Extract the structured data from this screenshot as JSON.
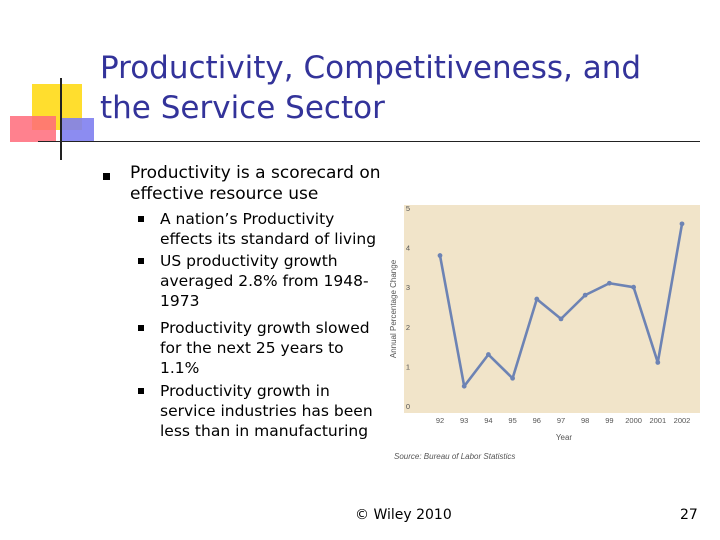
{
  "slide": {
    "title_line1": "Productivity, Competitiveness, and",
    "title_line2": "the Service Sector",
    "bullet": "Productivity is a scorecard on effective resource use",
    "sub_bullets": [
      "A nation’s Productivity effects its standard of living",
      "US productivity growth averaged 2.8% from 1948-1973",
      "Productivity growth slowed for the next 25 years to 1.1%",
      "Productivity growth in service industries has been less than in manufacturing"
    ],
    "footer": "© Wiley 2010",
    "page_number": "27"
  },
  "colors": {
    "title": "#33339a",
    "chart_background": "#f1e4c9",
    "series_line": "#6d83b4",
    "accent_yellow": "#ffde2e",
    "accent_red": "#ff6b7a",
    "accent_blue": "#7f7ff0"
  },
  "chart_data": {
    "type": "line",
    "categories": [
      "92",
      "93",
      "94",
      "95",
      "96",
      "97",
      "98",
      "99",
      "2000",
      "2001",
      "2002"
    ],
    "values": [
      3.8,
      0.5,
      1.3,
      0.7,
      2.7,
      2.2,
      2.8,
      3.1,
      3.0,
      1.1,
      4.6
    ],
    "xlabel": "Year",
    "ylabel": "Annual Percentage Change",
    "ylim": [
      0,
      5
    ],
    "yticks": [
      "0",
      "1",
      "2",
      "3",
      "4",
      "5"
    ],
    "source": "Source: Bureau of Labor Statistics",
    "grid": false
  }
}
